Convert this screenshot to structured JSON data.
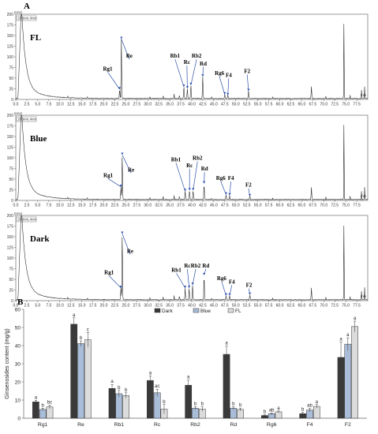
{
  "panel_a_letter": "A",
  "panel_b_letter": "B",
  "chromatograms": [
    {
      "label": "FL",
      "y_unit": "mAU",
      "channel": "203nm,4nm",
      "y_ticks": [
        "0",
        "25",
        "50",
        "75",
        "100",
        "125",
        "150",
        "175",
        "200"
      ],
      "x_ticks": [
        "0.0",
        "2.5",
        "5.0",
        "7.5",
        "10.0",
        "12.5",
        "15.0",
        "17.5",
        "20.0",
        "22.5",
        "25.0",
        "27.5",
        "30.0",
        "32.5",
        "35.0",
        "37.5",
        "40.0",
        "42.5",
        "45.0",
        "47.5",
        "50.0",
        "52.5",
        "55.0",
        "57.5",
        "60.0",
        "62.5",
        "65.0",
        "67.5",
        "70.0",
        "72.5",
        "75.0",
        "77.5"
      ],
      "x_unit": "min",
      "peaks": [
        {
          "name": "Rg1",
          "time": 23.6,
          "height": 22,
          "label_time": 20.9,
          "label_height": 68
        },
        {
          "name": "Re",
          "time": 24.0,
          "height": 140,
          "label_time": 25.8,
          "label_height": 98
        },
        {
          "name": "Rb1",
          "time": 38.2,
          "height": 28,
          "label_time": 36.2,
          "label_height": 98
        },
        {
          "name": "Rc",
          "time": 39.0,
          "height": 24,
          "label_time": 38.9,
          "label_height": 83
        },
        {
          "name": "Rb2",
          "time": 39.8,
          "height": 32,
          "label_time": 41.1,
          "label_height": 98
        },
        {
          "name": "Rd",
          "time": 42.5,
          "height": 52,
          "label_time": 42.6,
          "label_height": 80
        },
        {
          "name": "Rg6",
          "time": 47.5,
          "height": 10,
          "label_time": 46.3,
          "label_height": 57
        },
        {
          "name": "F4",
          "time": 48.2,
          "height": 8,
          "label_time": 48.4,
          "label_height": 53
        },
        {
          "name": "F2",
          "time": 52.9,
          "height": 18,
          "label_time": 52.6,
          "label_height": 62
        }
      ]
    },
    {
      "label": "Blue",
      "y_unit": "mAU",
      "channel": "203nm,4nm",
      "y_ticks": [
        "0",
        "25",
        "50",
        "75",
        "100",
        "125",
        "150",
        "175",
        "200"
      ],
      "x_ticks": [
        "0.0",
        "2.5",
        "5.0",
        "7.5",
        "10.0",
        "12.5",
        "15.0",
        "17.5",
        "20.0",
        "22.5",
        "25.0",
        "27.5",
        "30.0",
        "32.5",
        "35.0",
        "37.5",
        "40.0",
        "42.5",
        "45.0",
        "47.5",
        "50.0",
        "52.5",
        "55.0",
        "57.5",
        "60.0",
        "62.5",
        "65.0",
        "67.5",
        "70.0",
        "72.5",
        "75.0",
        "77.5"
      ],
      "x_unit": "min",
      "peaks": [
        {
          "name": "Rg1",
          "time": 23.9,
          "height": 30,
          "label_time": 21.0,
          "label_height": 55
        },
        {
          "name": "Re",
          "time": 24.2,
          "height": 105,
          "label_time": 26.2,
          "label_height": 68
        },
        {
          "name": "Rb1",
          "time": 38.5,
          "height": 20,
          "label_time": 36.4,
          "label_height": 92
        },
        {
          "name": "Rc",
          "time": 39.5,
          "height": 22,
          "label_time": 39.5,
          "label_height": 78
        },
        {
          "name": "Rb2",
          "time": 40.3,
          "height": 22,
          "label_time": 41.3,
          "label_height": 95
        },
        {
          "name": "Rd",
          "time": 42.8,
          "height": 38,
          "label_time": 42.9,
          "label_height": 70
        },
        {
          "name": "Rg6",
          "time": 47.8,
          "height": 12,
          "label_time": 46.6,
          "label_height": 48
        },
        {
          "name": "F4",
          "time": 48.6,
          "height": 10,
          "label_time": 48.9,
          "label_height": 48
        },
        {
          "name": "F2",
          "time": 53.2,
          "height": 8,
          "label_time": 52.9,
          "label_height": 32
        }
      ]
    },
    {
      "label": "Dark",
      "y_unit": "mAU",
      "channel": "203nm,4nm",
      "y_ticks": [
        "0",
        "25",
        "50",
        "75",
        "100",
        "125",
        "150",
        "175",
        "200"
      ],
      "x_ticks": [
        "0.0",
        "2.5",
        "5.0",
        "7.5",
        "10.0",
        "12.5",
        "15.0",
        "17.5",
        "20.0",
        "22.5",
        "25.0",
        "27.5",
        "30.0",
        "32.5",
        "35.0",
        "37.5",
        "40.0",
        "42.5",
        "45.0",
        "47.5",
        "50.0",
        "52.5",
        "55.0",
        "57.5",
        "60.0",
        "62.5",
        "65.0",
        "67.5",
        "70.0",
        "72.5",
        "75.0",
        "77.5"
      ],
      "x_unit": "min",
      "peaks": [
        {
          "name": "Rg1",
          "time": 23.9,
          "height": 28,
          "label_time": 21.2,
          "label_height": 62
        },
        {
          "name": "Re",
          "time": 24.2,
          "height": 155,
          "label_time": 26.0,
          "label_height": 112
        },
        {
          "name": "Rb1",
          "time": 38.5,
          "height": 28,
          "label_time": 36.5,
          "label_height": 68
        },
        {
          "name": "Rc",
          "time": 39.4,
          "height": 28,
          "label_time": 39.0,
          "label_height": 78
        },
        {
          "name": "Rb2",
          "time": 40.2,
          "height": 35,
          "label_time": 40.9,
          "label_height": 78
        },
        {
          "name": "Rd",
          "time": 42.8,
          "height": 58,
          "label_time": 43.2,
          "label_height": 78
        },
        {
          "name": "Rg6",
          "time": 47.8,
          "height": 10,
          "label_time": 46.8,
          "label_height": 48
        },
        {
          "name": "F4",
          "time": 48.6,
          "height": 10,
          "label_time": 49.1,
          "label_height": 40
        },
        {
          "name": "F2",
          "time": 53.2,
          "height": 12,
          "label_time": 53.0,
          "label_height": 32
        }
      ]
    }
  ],
  "chart_data": {
    "type": "bar",
    "categories": [
      "Rg1",
      "Re",
      "Rb1",
      "Rc",
      "Rb2",
      "Rd",
      "Rg6",
      "F4",
      "F2"
    ],
    "series": [
      {
        "name": "Dark",
        "color": "#3a3a3a",
        "values": [
          9.0,
          51.8,
          16.4,
          20.8,
          18.2,
          35.2,
          1.5,
          2.5,
          33.5
        ],
        "errors": [
          0.8,
          3.5,
          2.2,
          2.5,
          2.8,
          4.5,
          0.4,
          0.8,
          8.5
        ],
        "letters": [
          "a",
          "a",
          "a",
          "a",
          "a",
          "a",
          "b",
          "b",
          "a"
        ]
      },
      {
        "name": "Blue",
        "color": "#a9bcd8",
        "values": [
          4.8,
          41.1,
          13.5,
          14.0,
          5.5,
          5.5,
          2.5,
          4.5,
          40.8
        ],
        "errors": [
          0.7,
          1.5,
          1.8,
          2.0,
          0.8,
          0.9,
          0.4,
          0.9,
          3.5
        ],
        "letters": [
          "b",
          "b",
          "b",
          "ac",
          "b",
          "b",
          "ab",
          "ab",
          "a"
        ]
      },
      {
        "name": "FL",
        "color": "#dcdcdc",
        "values": [
          6.2,
          43.2,
          12.5,
          5.0,
          5.0,
          4.8,
          3.5,
          6.5,
          50.5
        ],
        "errors": [
          1.0,
          4.0,
          1.5,
          2.5,
          1.2,
          0.8,
          0.5,
          1.0,
          3.0
        ],
        "letters": [
          "bc",
          "c",
          "b",
          "b",
          "b",
          "b",
          "a",
          "a",
          "a"
        ]
      }
    ],
    "ylabel": "Ginsenosides content (mg/g)",
    "ylim": [
      0,
      60
    ],
    "yticks": [
      0,
      10,
      20,
      30,
      40,
      50,
      60
    ],
    "legend": "top-center"
  }
}
